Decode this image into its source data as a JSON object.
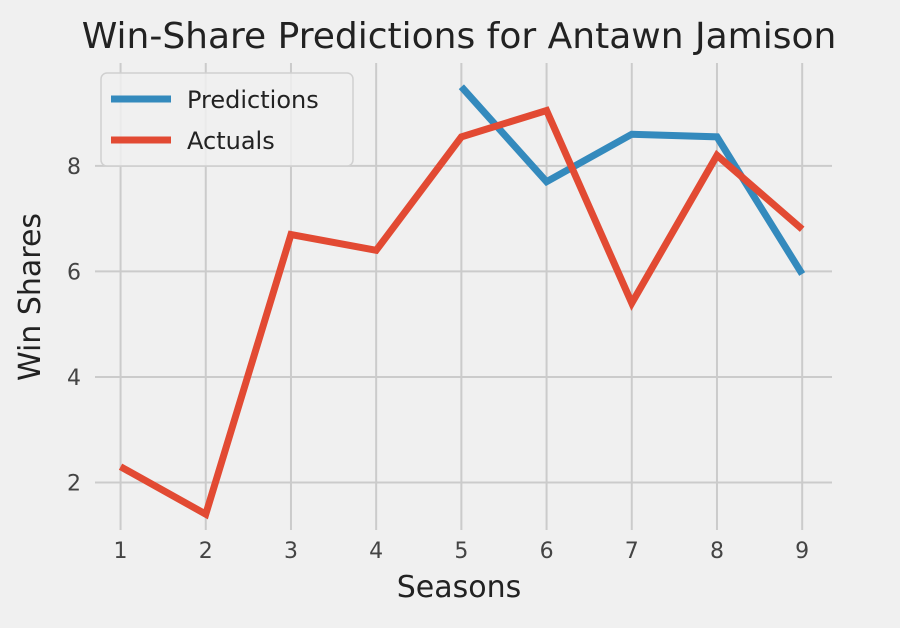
{
  "chart_data": {
    "type": "line",
    "title": "Win-Share Predictions for Antawn Jamison",
    "xlabel": "Seasons",
    "ylabel": "Win Shares",
    "x_ticks": [
      1,
      2,
      3,
      4,
      5,
      6,
      7,
      8,
      9
    ],
    "y_ticks": [
      2,
      4,
      6,
      8
    ],
    "xlim": [
      0.7,
      9.35
    ],
    "ylim": [
      1.1,
      9.95
    ],
    "grid": true,
    "legend_position": "top-left",
    "series": [
      {
        "name": "Predictions",
        "color": "#348ABD",
        "x": [
          5,
          6,
          7,
          8,
          9
        ],
        "y": [
          9.5,
          7.7,
          8.6,
          8.55,
          5.95
        ]
      },
      {
        "name": "Actuals",
        "color": "#E24A33",
        "x": [
          1,
          2,
          3,
          4,
          5,
          6,
          7,
          8,
          9
        ],
        "y": [
          2.3,
          1.4,
          6.7,
          6.4,
          8.55,
          9.05,
          5.4,
          8.2,
          6.8
        ]
      }
    ]
  }
}
